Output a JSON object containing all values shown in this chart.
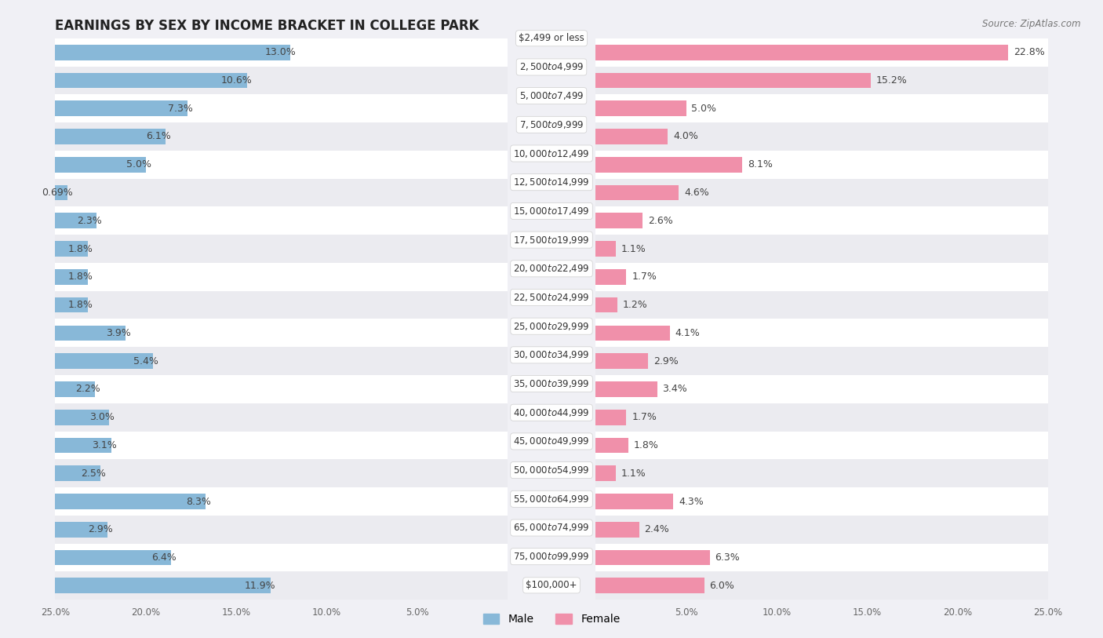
{
  "title": "EARNINGS BY SEX BY INCOME BRACKET IN COLLEGE PARK",
  "source": "Source: ZipAtlas.com",
  "categories": [
    "$2,499 or less",
    "$2,500 to $4,999",
    "$5,000 to $7,499",
    "$7,500 to $9,999",
    "$10,000 to $12,499",
    "$12,500 to $14,999",
    "$15,000 to $17,499",
    "$17,500 to $19,999",
    "$20,000 to $22,499",
    "$22,500 to $24,999",
    "$25,000 to $29,999",
    "$30,000 to $34,999",
    "$35,000 to $39,999",
    "$40,000 to $44,999",
    "$45,000 to $49,999",
    "$50,000 to $54,999",
    "$55,000 to $64,999",
    "$65,000 to $74,999",
    "$75,000 to $99,999",
    "$100,000+"
  ],
  "male_values": [
    13.0,
    10.6,
    7.3,
    6.1,
    5.0,
    0.69,
    2.3,
    1.8,
    1.8,
    1.8,
    3.9,
    5.4,
    2.2,
    3.0,
    3.1,
    2.5,
    8.3,
    2.9,
    6.4,
    11.9
  ],
  "female_values": [
    22.8,
    15.2,
    5.0,
    4.0,
    8.1,
    4.6,
    2.6,
    1.1,
    1.7,
    1.2,
    4.1,
    2.9,
    3.4,
    1.7,
    1.8,
    1.1,
    4.3,
    2.4,
    6.3,
    6.0
  ],
  "male_color": "#88b8d8",
  "female_color": "#f090aa",
  "row_bg_color": "#e8e8ee",
  "bar_bg_color": "#dce4f0",
  "female_bar_bg_color": "#f5d0dc",
  "background_color": "#f0f0f5",
  "xlim": 25.0,
  "bar_height": 0.55,
  "label_fontsize": 9.0,
  "category_fontsize": 8.5,
  "title_fontsize": 12,
  "legend_labels": [
    "Male",
    "Female"
  ],
  "tick_labels": [
    "25.0%",
    "20.0%",
    "15.0%",
    "10.0%",
    "5.0%",
    "5.0%",
    "10.0%",
    "15.0%",
    "20.0%",
    "25.0%"
  ]
}
